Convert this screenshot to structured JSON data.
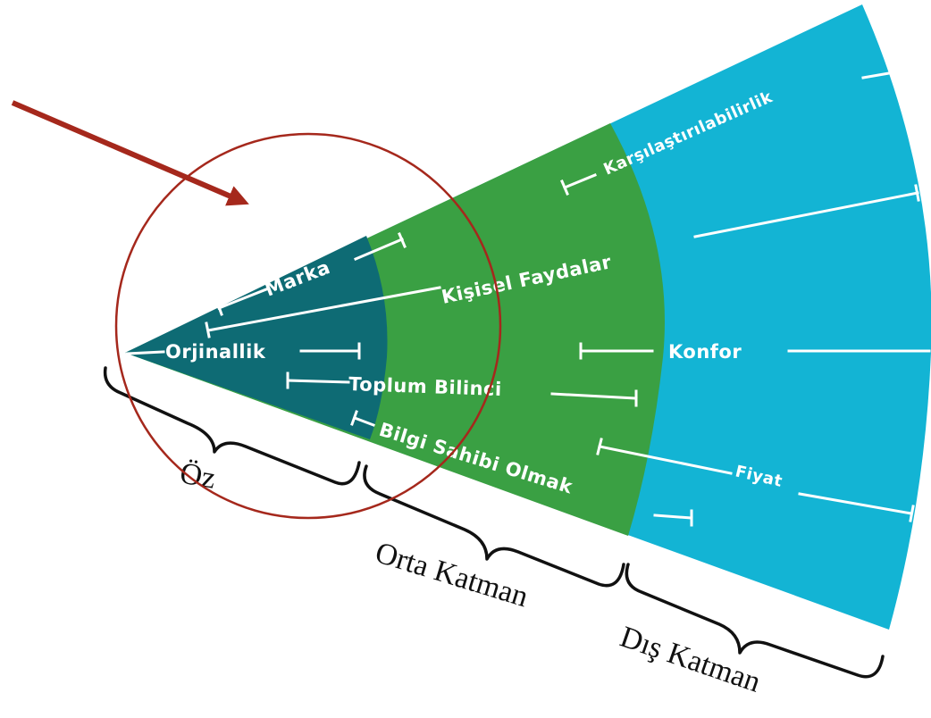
{
  "layers": {
    "core": {
      "label": "Öz",
      "color": "#0e6b74"
    },
    "middle": {
      "label": "Orta Katman",
      "color": "#3aa043"
    },
    "outer": {
      "label": "Dış Katman",
      "color": "#13b4d4"
    }
  },
  "attributes": {
    "core": [
      "Marka",
      "Orjinallik",
      "Toplum Bilinci",
      "Bilgi Sahibi Olmak",
      "Kişisel Faydalar"
    ],
    "middle": [
      "Karşılaştırılabilirlik"
    ],
    "outer": [
      "Konfor",
      "Fiyat"
    ]
  },
  "annotation": {
    "arrow_color": "#a5281c",
    "circle_color": "#a5281c"
  }
}
